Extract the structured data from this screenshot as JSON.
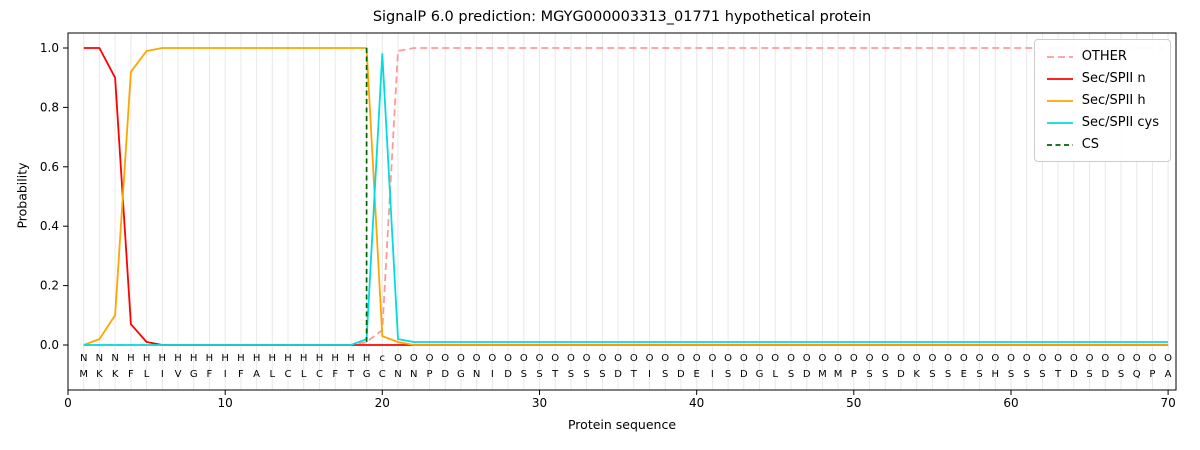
{
  "chart_data": {
    "type": "line",
    "title": "SignalP 6.0 prediction: MGYG000003313_01771 hypothetical protein",
    "xlabel": "Protein sequence",
    "ylabel": "Probability",
    "xlim": [
      0,
      70.5
    ],
    "ylim": [
      0,
      1.05
    ],
    "xticks": [
      "0",
      "10",
      "20",
      "30",
      "40",
      "50",
      "60",
      "70"
    ],
    "yticks": [
      "0.0",
      "0.2",
      "0.4",
      "0.6",
      "0.8",
      "1.0"
    ],
    "grid": "vertical-per-residue",
    "legend_position": "upper-right",
    "series": [
      {
        "name": "OTHER",
        "color": "#ff9999",
        "dash": "7 4",
        "values": [
          0,
          0,
          0,
          0,
          0,
          0,
          0,
          0,
          0,
          0,
          0,
          0,
          0,
          0,
          0,
          0,
          0,
          0,
          0.01,
          0.05,
          0.99,
          1,
          1,
          1,
          1,
          1,
          1,
          1,
          1,
          1,
          1,
          1,
          1,
          1,
          1,
          1,
          1,
          1,
          1,
          1,
          1,
          1,
          1,
          1,
          1,
          1,
          1,
          1,
          1,
          1,
          1,
          1,
          1,
          1,
          1,
          1,
          1,
          1,
          1,
          1,
          1,
          1,
          1,
          1,
          1,
          1,
          1,
          1,
          1,
          1
        ]
      },
      {
        "name": "Sec/SPII n",
        "color": "#ff0000",
        "dash": null,
        "values": [
          1,
          1,
          0.9,
          0.07,
          0.01,
          0,
          0,
          0,
          0,
          0,
          0,
          0,
          0,
          0,
          0,
          0,
          0,
          0,
          0,
          0,
          0,
          0,
          0,
          0,
          0,
          0,
          0,
          0,
          0,
          0,
          0,
          0,
          0,
          0,
          0,
          0,
          0,
          0,
          0,
          0,
          0,
          0,
          0,
          0,
          0,
          0,
          0,
          0,
          0,
          0,
          0,
          0,
          0,
          0,
          0,
          0,
          0,
          0,
          0,
          0,
          0,
          0,
          0,
          0,
          0,
          0,
          0,
          0,
          0,
          0
        ]
      },
      {
        "name": "Sec/SPII h",
        "color": "#ffa500",
        "dash": null,
        "values": [
          0,
          0.02,
          0.1,
          0.92,
          0.99,
          1,
          1,
          1,
          1,
          1,
          1,
          1,
          1,
          1,
          1,
          1,
          1,
          1,
          1,
          0.03,
          0.01,
          0,
          0,
          0,
          0,
          0,
          0,
          0,
          0,
          0,
          0,
          0,
          0,
          0,
          0,
          0,
          0,
          0,
          0,
          0,
          0,
          0,
          0,
          0,
          0,
          0,
          0,
          0,
          0,
          0,
          0,
          0,
          0,
          0,
          0,
          0,
          0,
          0,
          0,
          0,
          0,
          0,
          0,
          0,
          0,
          0,
          0,
          0,
          0,
          0
        ]
      },
      {
        "name": "Sec/SPII cys",
        "color": "#00dddd",
        "dash": null,
        "values": [
          0,
          0,
          0,
          0,
          0,
          0,
          0,
          0,
          0,
          0,
          0,
          0,
          0,
          0,
          0,
          0,
          0,
          0,
          0.02,
          0.98,
          0.02,
          0.01,
          0.01,
          0.01,
          0.01,
          0.01,
          0.01,
          0.01,
          0.01,
          0.01,
          0.01,
          0.01,
          0.01,
          0.01,
          0.01,
          0.01,
          0.01,
          0.01,
          0.01,
          0.01,
          0.01,
          0.01,
          0.01,
          0.01,
          0.01,
          0.01,
          0.01,
          0.01,
          0.01,
          0.01,
          0.01,
          0.01,
          0.01,
          0.01,
          0.01,
          0.01,
          0.01,
          0.01,
          0.01,
          0.01,
          0.01,
          0.01,
          0.01,
          0.01,
          0.01,
          0.01,
          0.01,
          0.01,
          0.01,
          0.01
        ]
      }
    ],
    "cs_line": {
      "name": "CS",
      "x": 19,
      "color": "#006400",
      "dash": "5 3.5"
    },
    "annotation_row": "NNNHHHHHHHHHHHHHHHHcOOOOOOOOOOOOOOOOOOOOOOOOOOOOOOOOOOOOOOOOOOOOOOOOOO",
    "annotation_colors": {
      "N": "#ff0000",
      "H": "#ffa500",
      "c": "#00cccc",
      "O": "#a9a9a9"
    },
    "sequence": "MKKFLIVGFIFALCLCFTGCNNPDGNIDSSTSSSDTISDEISDGLSDMMPSSDKSSESHSSSTDSDSQPA",
    "sequence_color": "#2b2b2b",
    "gridline_color": "#e8e8e8",
    "spine_color": "#000000"
  }
}
